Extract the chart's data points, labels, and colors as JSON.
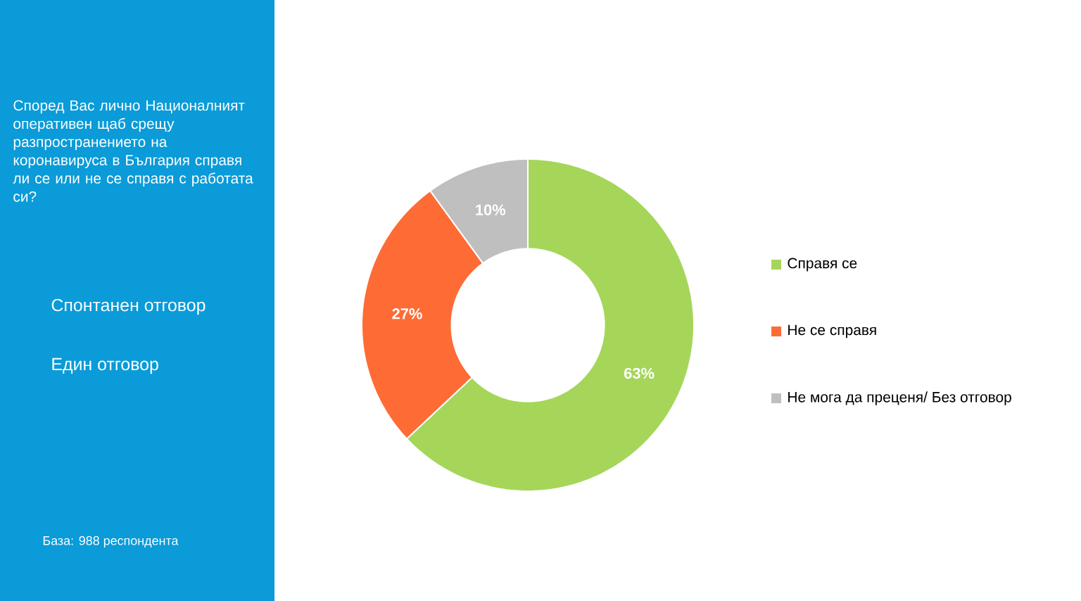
{
  "chart_data": {
    "type": "donut",
    "title": "Според Вас лично Националният оперативен щаб срещу разпространението на коронавируса в България справя ли се или не се справя с работата си?",
    "categories": [
      "Справя се",
      "Не се справя",
      "Не мога да преценя/ Без отговор"
    ],
    "values": [
      63,
      27,
      10
    ],
    "colors": [
      "#a5d65a",
      "#ff6b35",
      "#bfbfbf"
    ],
    "value_labels": [
      "63%",
      "27%",
      "10%"
    ],
    "legend": "right",
    "annotations": [
      "Спонтанен отговор",
      "Един отговор",
      "База: 988 респондента"
    ]
  }
}
